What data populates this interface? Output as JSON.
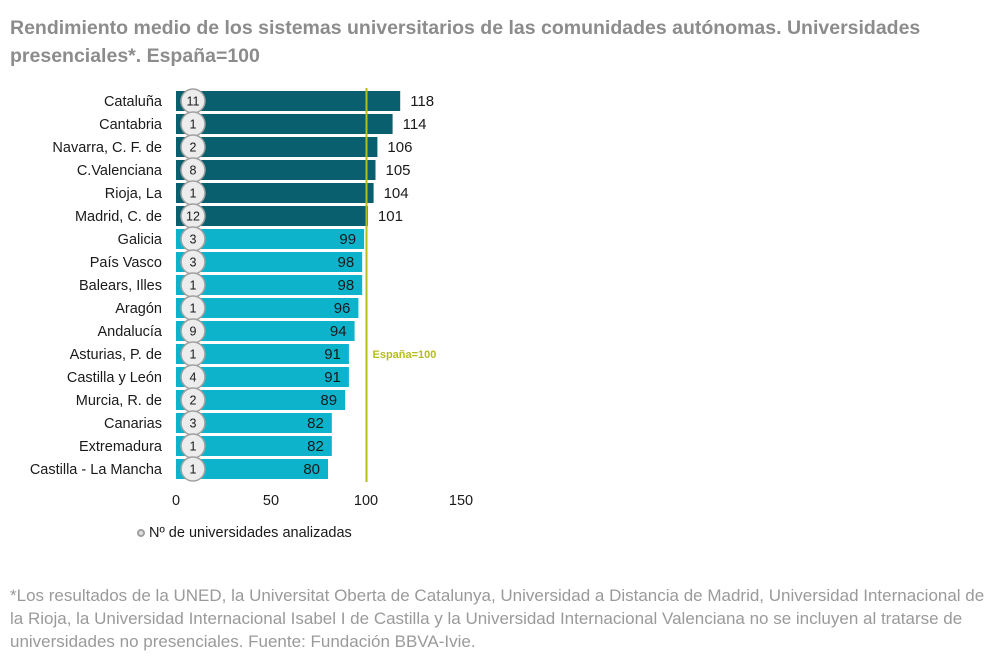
{
  "title": "Rendimiento medio de los sistemas universitarios de las comunidades autónomas. Universidades presenciales*. España=100",
  "legend_label": "Nº de universidades analizadas",
  "footnote": "*Los resultados de la UNED, la Universitat Oberta de Catalunya, Universidad a Distancia de Madrid, Universidad Internacional de la Rioja, la Universidad Internacional Isabel I de Castilla y la Universidad Internacional Valenciana no se incluyen al tratarse de universidades no presenciales. Fuente: Fundación BBVA-Ivie.",
  "colors": {
    "above_reference": "#0a5f6e",
    "below_reference": "#0db3cb",
    "reference_line": "#b5bd1c",
    "circle_fill": "#ececec",
    "circle_stroke": "#a0a0a0"
  },
  "chart_data": {
    "type": "bar",
    "orientation": "horizontal",
    "categories": [
      "Cataluña",
      "Cantabria",
      "Navarra, C. F. de",
      "C.Valenciana",
      "Rioja, La",
      "Madrid, C. de",
      "Galicia",
      "País Vasco",
      "Balears, Illes",
      "Aragón",
      "Andalucía",
      "Asturias, P. de",
      "Castilla y León",
      "Murcia, R. de",
      "Canarias",
      "Extremadura",
      "Castilla - La Mancha"
    ],
    "values": [
      118,
      114,
      106,
      105,
      104,
      101,
      99,
      98,
      98,
      96,
      94,
      91,
      91,
      89,
      82,
      82,
      80
    ],
    "university_counts": [
      11,
      1,
      2,
      8,
      1,
      12,
      3,
      3,
      1,
      1,
      9,
      1,
      4,
      2,
      3,
      1,
      1
    ],
    "xlim": [
      0,
      150
    ],
    "xticks": [
      0,
      50,
      100,
      150
    ],
    "reference_line": {
      "value": 100,
      "label": "España=100"
    },
    "grid": false
  }
}
